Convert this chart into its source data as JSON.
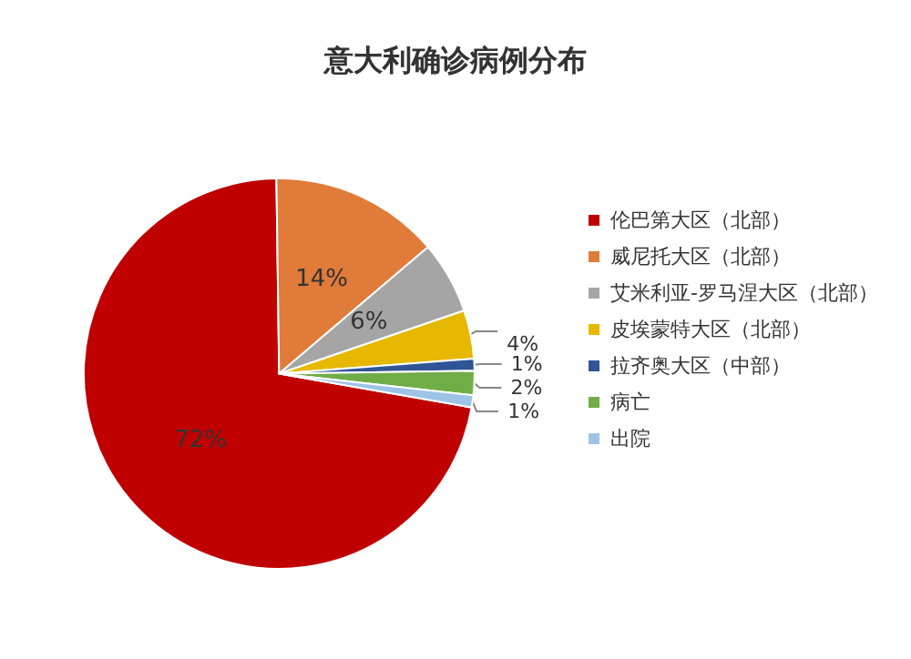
{
  "chart_data": {
    "type": "pie",
    "title": "意大利确诊病例分布",
    "categories": [
      "伦巴第大区（北部）",
      "威尼托大区（北部）",
      "艾米利亚-罗马涅大区（北部）",
      "皮埃蒙特大区（北部）",
      "拉齐奥大区（中部）",
      "病亡",
      "出院"
    ],
    "values": [
      72,
      14,
      6,
      4,
      1,
      2,
      1
    ],
    "colors": [
      "#c00000",
      "#e07b39",
      "#a5a5a5",
      "#e6b800",
      "#2f5597",
      "#70ad47",
      "#9dc3e6"
    ],
    "value_labels": [
      "72%",
      "14%",
      "6%",
      "4%",
      "1%",
      "2%",
      "1%"
    ],
    "legend": "right"
  }
}
